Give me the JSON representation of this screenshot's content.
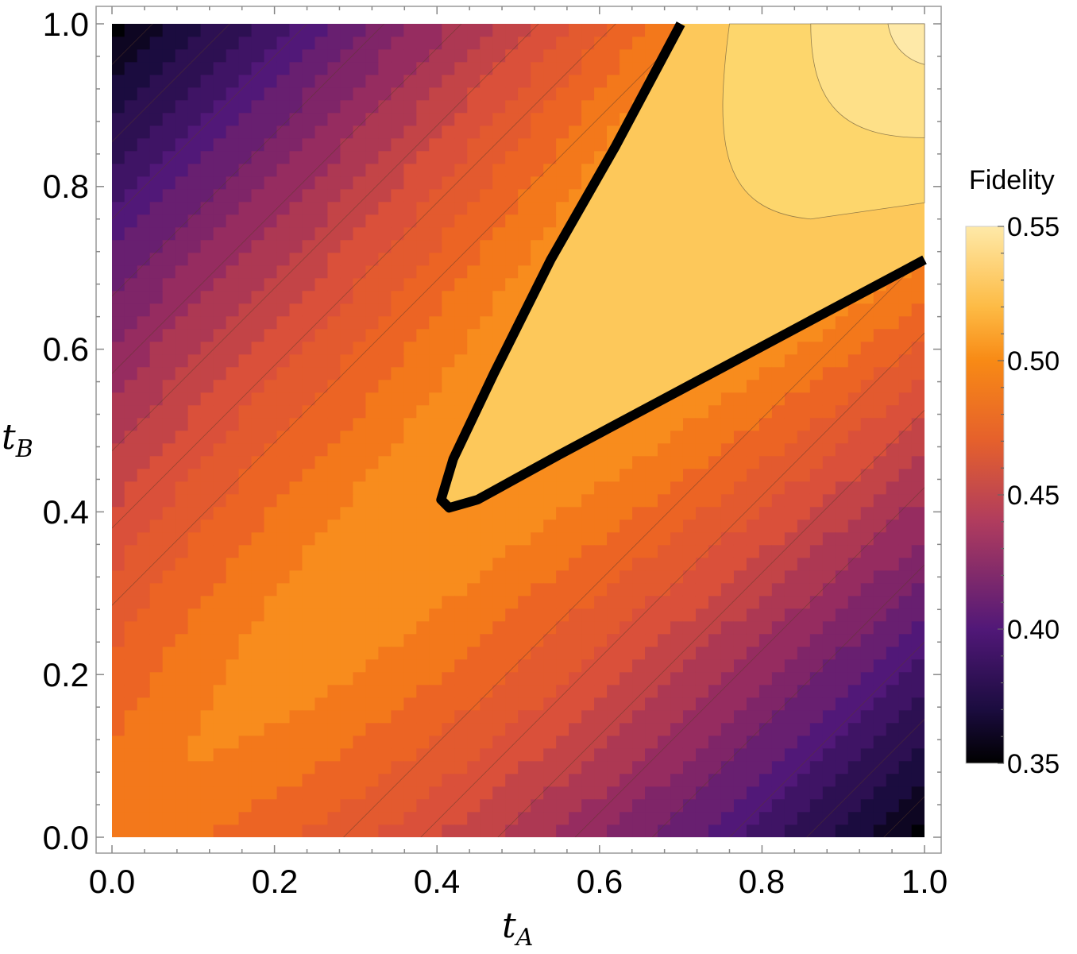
{
  "chart_data": {
    "type": "heatmap",
    "subtype": "contour",
    "xlabel": {
      "main": "t",
      "sub": "A"
    },
    "ylabel": {
      "main": "t",
      "sub": "B"
    },
    "xlim": [
      0.0,
      1.0
    ],
    "ylim": [
      0.0,
      1.0
    ],
    "x_ticks": [
      "0.0",
      "0.2",
      "0.4",
      "0.6",
      "0.8",
      "1.0"
    ],
    "y_ticks": [
      "0.0",
      "0.2",
      "0.4",
      "0.6",
      "0.8",
      "1.0"
    ],
    "legend_title": "Fidelity",
    "color_range": [
      0.35,
      0.55
    ],
    "colorbar_ticks": [
      "0.35",
      "0.40",
      "0.45",
      "0.50",
      "0.55"
    ],
    "grid": false,
    "legend_position": "right",
    "highlighted_contour": 0.5,
    "colormap": [
      "#000004",
      "#420a68",
      "#932667",
      "#dd513a",
      "#fca50a",
      "#fcffa4"
    ],
    "boundary_color": "#000000",
    "annotations": []
  }
}
